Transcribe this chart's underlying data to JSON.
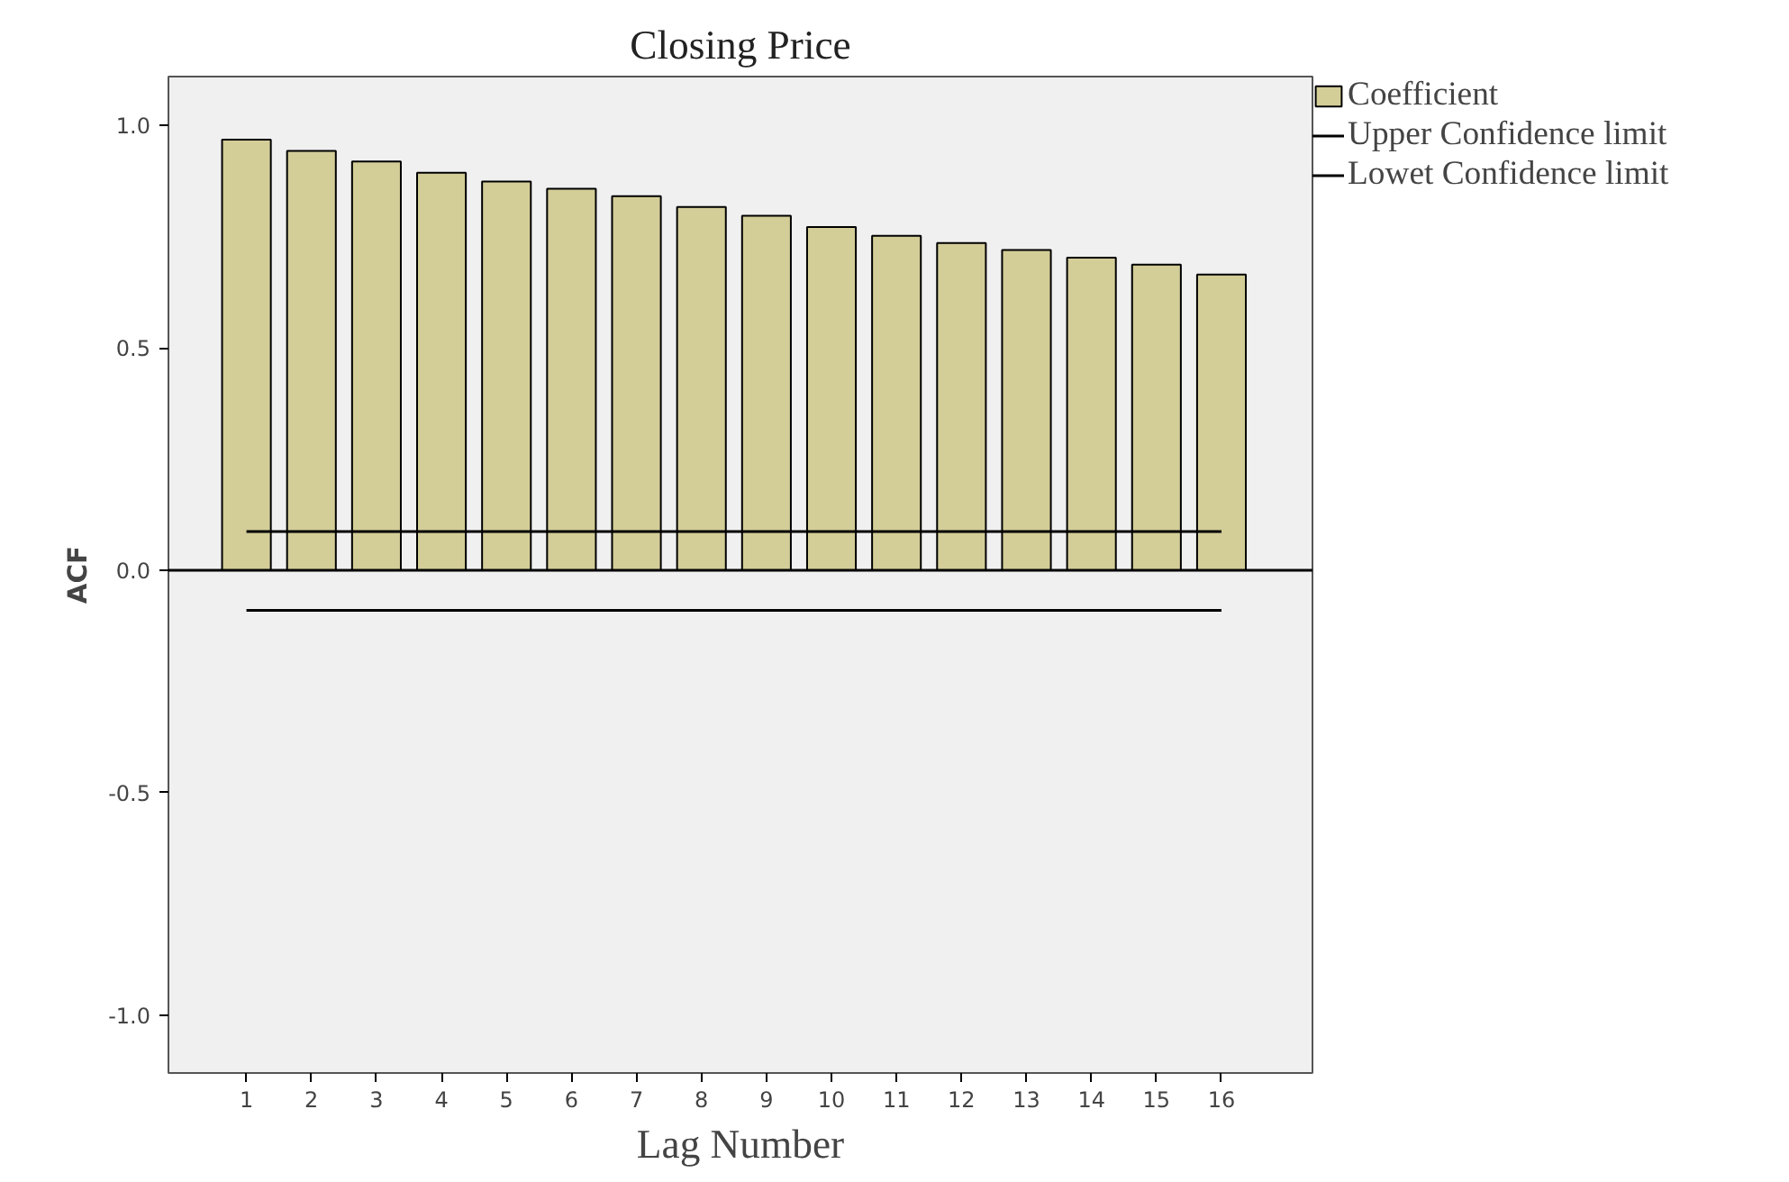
{
  "chart_data": {
    "type": "bar",
    "title": "Closing Price",
    "xlabel": "Lag Number",
    "ylabel": "ACF",
    "x": [
      1,
      2,
      3,
      4,
      5,
      6,
      7,
      8,
      9,
      10,
      11,
      12,
      13,
      14,
      15,
      16
    ],
    "xlim": [
      -0.2,
      17.4
    ],
    "xticks": [
      1,
      2,
      3,
      4,
      5,
      6,
      7,
      8,
      9,
      10,
      11,
      12,
      13,
      14,
      15,
      16
    ],
    "ylim": [
      -1.13,
      1.11
    ],
    "yticks": [
      {
        "value": -1.0,
        "label": "-1.0"
      },
      {
        "value": -0.5,
        "label": "-0.5"
      },
      {
        "value": 0,
        "label": "0.0"
      },
      {
        "value": 0.5,
        "label": "0.5"
      },
      {
        "value": 1.0,
        "label": "1.0"
      }
    ],
    "series": [
      {
        "name": "Coefficient",
        "color": "#d3cd98",
        "values": [
          0.968,
          0.943,
          0.919,
          0.894,
          0.874,
          0.858,
          0.841,
          0.817,
          0.797,
          0.772,
          0.752,
          0.736,
          0.72,
          0.703,
          0.687,
          0.665
        ]
      },
      {
        "name": "Upper Confidence limit",
        "type": "line",
        "color": "#000000",
        "values": [
          0.087,
          0.087,
          0.087,
          0.087,
          0.087,
          0.087,
          0.087,
          0.087,
          0.087,
          0.087,
          0.087,
          0.087,
          0.087,
          0.087,
          0.087,
          0.087
        ]
      },
      {
        "name": "Lowet Confidence limit",
        "type": "line",
        "color": "#000000",
        "values": [
          -0.09,
          -0.09,
          -0.09,
          -0.09,
          -0.09,
          -0.09,
          -0.09,
          -0.09,
          -0.09,
          -0.09,
          -0.09,
          -0.09,
          -0.09,
          -0.09,
          -0.09,
          -0.09
        ]
      }
    ],
    "ref_lines": [
      {
        "axis": "y",
        "value": 0,
        "color": "#000000"
      }
    ],
    "grid": false,
    "legend": "top right"
  }
}
